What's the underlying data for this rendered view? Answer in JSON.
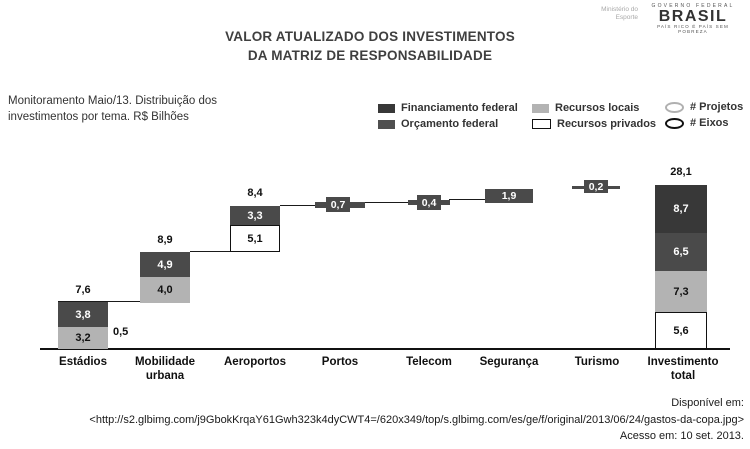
{
  "page": {
    "title_line1": "VALOR ATUALIZADO DOS INVESTIMENTOS",
    "title_line2": "DA MATRIZ DE RESPONSABILIDADE",
    "subtitle_line1": "Monitoramento Maio/13. Distribuição dos",
    "subtitle_line2": "investimentos por tema. R$ Bilhões"
  },
  "logos": {
    "ministry_line1": "Ministério do",
    "ministry_line2": "Esporte",
    "brasil_top": "GOVERNO FEDERAL",
    "brasil_name": "BRASIL",
    "brasil_bottom": "PAÍS RICO É PAÍS SEM POBREZA"
  },
  "legend": {
    "items": [
      {
        "label": "Financiamento federal",
        "swatch": "dark-square"
      },
      {
        "label": "Orçamento federal",
        "swatch": "mid-dark-square"
      },
      {
        "label": "Recursos locais",
        "swatch": "light-gray-square"
      },
      {
        "label": "Recursos privados",
        "swatch": "white-outlined-square"
      },
      {
        "label": "# Projetos",
        "swatch": "gray-outline-ellipse"
      },
      {
        "label": "# Eixos",
        "swatch": "black-outline-ellipse"
      }
    ]
  },
  "chart_data": {
    "type": "bar",
    "subtype": "stacked-waterfall",
    "title": "VALOR ATUALIZADO DOS INVESTIMENTOS DA MATRIZ DE RESPONSABILIDADE",
    "unit": "R$ Bilhões",
    "grid": false,
    "legend_position": "top-right",
    "categories": [
      "Estádios",
      "Mobilidade urbana",
      "Aeroportos",
      "Portos",
      "Telecom",
      "Segurança",
      "Turismo",
      "Investimento total"
    ],
    "totals": [
      7.6,
      8.9,
      8.4,
      0.7,
      0.4,
      1.9,
      0.2,
      28.1
    ],
    "series_legend": [
      "Financiamento federal",
      "Orçamento federal",
      "Recursos locais",
      "Recursos privados"
    ],
    "bars": [
      {
        "label": "Estádios",
        "total_label": "7,6",
        "segments": [
          {
            "value": 3.8,
            "label": "3,8",
            "type": "orcamento"
          },
          {
            "value": 3.2,
            "label": "3,2",
            "type": "locais"
          }
        ],
        "extra_label": "0,5"
      },
      {
        "label": "Mobilidade urbana",
        "total_label": "8,9",
        "segments": [
          {
            "value": 4.9,
            "label": "4,9",
            "type": "orcamento"
          },
          {
            "value": 4.0,
            "label": "4,0",
            "type": "locais"
          }
        ]
      },
      {
        "label": "Aeroportos",
        "total_label": "8,4",
        "segments": [
          {
            "value": 3.3,
            "label": "3,3",
            "type": "orcamento"
          },
          {
            "value": 5.1,
            "label": "5,1",
            "type": "privados"
          }
        ]
      },
      {
        "label": "Portos",
        "total_label": "0,7",
        "style": "chip",
        "value": 0.7
      },
      {
        "label": "Telecom",
        "total_label": "0,4",
        "style": "chip",
        "value": 0.4
      },
      {
        "label": "Segurança",
        "total_label": "1,9",
        "style": "solid",
        "value": 1.9
      },
      {
        "label": "Turismo",
        "total_label": "0,2",
        "style": "chip",
        "value": 0.2
      },
      {
        "label": "Investimento total",
        "total_label": "28,1",
        "segments": [
          {
            "value": 8.7,
            "label": "8,7",
            "type": "financiamento"
          },
          {
            "value": 6.5,
            "label": "6,5",
            "type": "orcamento"
          },
          {
            "value": 7.3,
            "label": "7,3",
            "type": "locais"
          },
          {
            "value": 5.6,
            "label": "5,6",
            "type": "privados"
          }
        ]
      }
    ]
  },
  "footer": {
    "line1": "Disponível em:",
    "line2": "<http://s2.glbimg.com/j9GbokKrqaY61Gwh323k4dyCWT4=/620x349/top/s.glbimg.com/es/ge/f/original/2013/06/24/gastos-da-copa.jpg>",
    "line3": "Acesso em: 10 set. 2013."
  },
  "colors": {
    "financiamento_federal": "#383838",
    "orcamento_federal": "#4a4a4a",
    "recursos_locais": "#b3b3b3",
    "recursos_privados": "#ffffff",
    "ink": "#101010"
  }
}
